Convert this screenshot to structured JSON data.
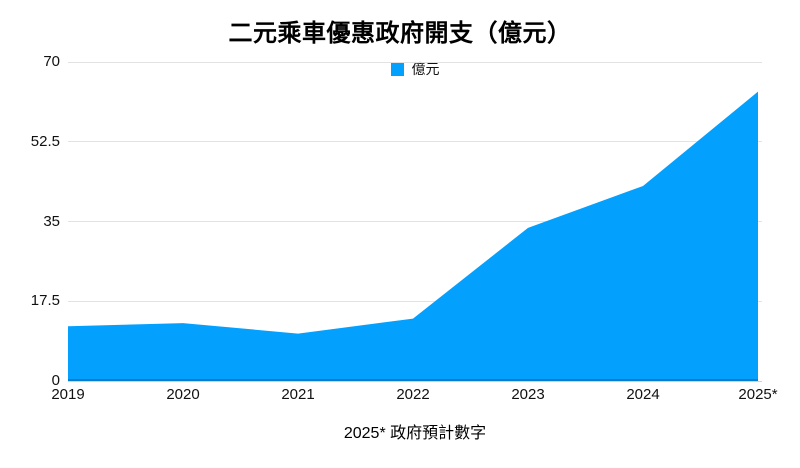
{
  "title": "二元乘車優惠政府開支（億元）",
  "legend": {
    "label": "億元",
    "swatch_color": "#04A0FE"
  },
  "footnote": "2025* 政府預計數字",
  "chart_data": {
    "type": "area",
    "categories": [
      "2019",
      "2020",
      "2021",
      "2022",
      "2023",
      "2024",
      "2025*"
    ],
    "series": [
      {
        "name": "億元",
        "values": [
          12,
          12.7,
          10.4,
          13.7,
          33.6,
          42.8,
          63.5
        ]
      }
    ],
    "title": "二元乘車優惠政府開支（億元）",
    "xlabel": "",
    "ylabel": "",
    "ylim": [
      0,
      70
    ],
    "yticks": [
      0,
      17.5,
      35,
      52.5,
      70
    ],
    "grid": true,
    "legend_position": "top-center",
    "annotation": "2025* 政府預計數字",
    "colors": {
      "area_fill": "#04A0FE",
      "baseline_stroke": "#0B7CC9",
      "gridline": "#E2E2E2",
      "axis_line": "#D2D2D2",
      "text": "#111111"
    }
  }
}
